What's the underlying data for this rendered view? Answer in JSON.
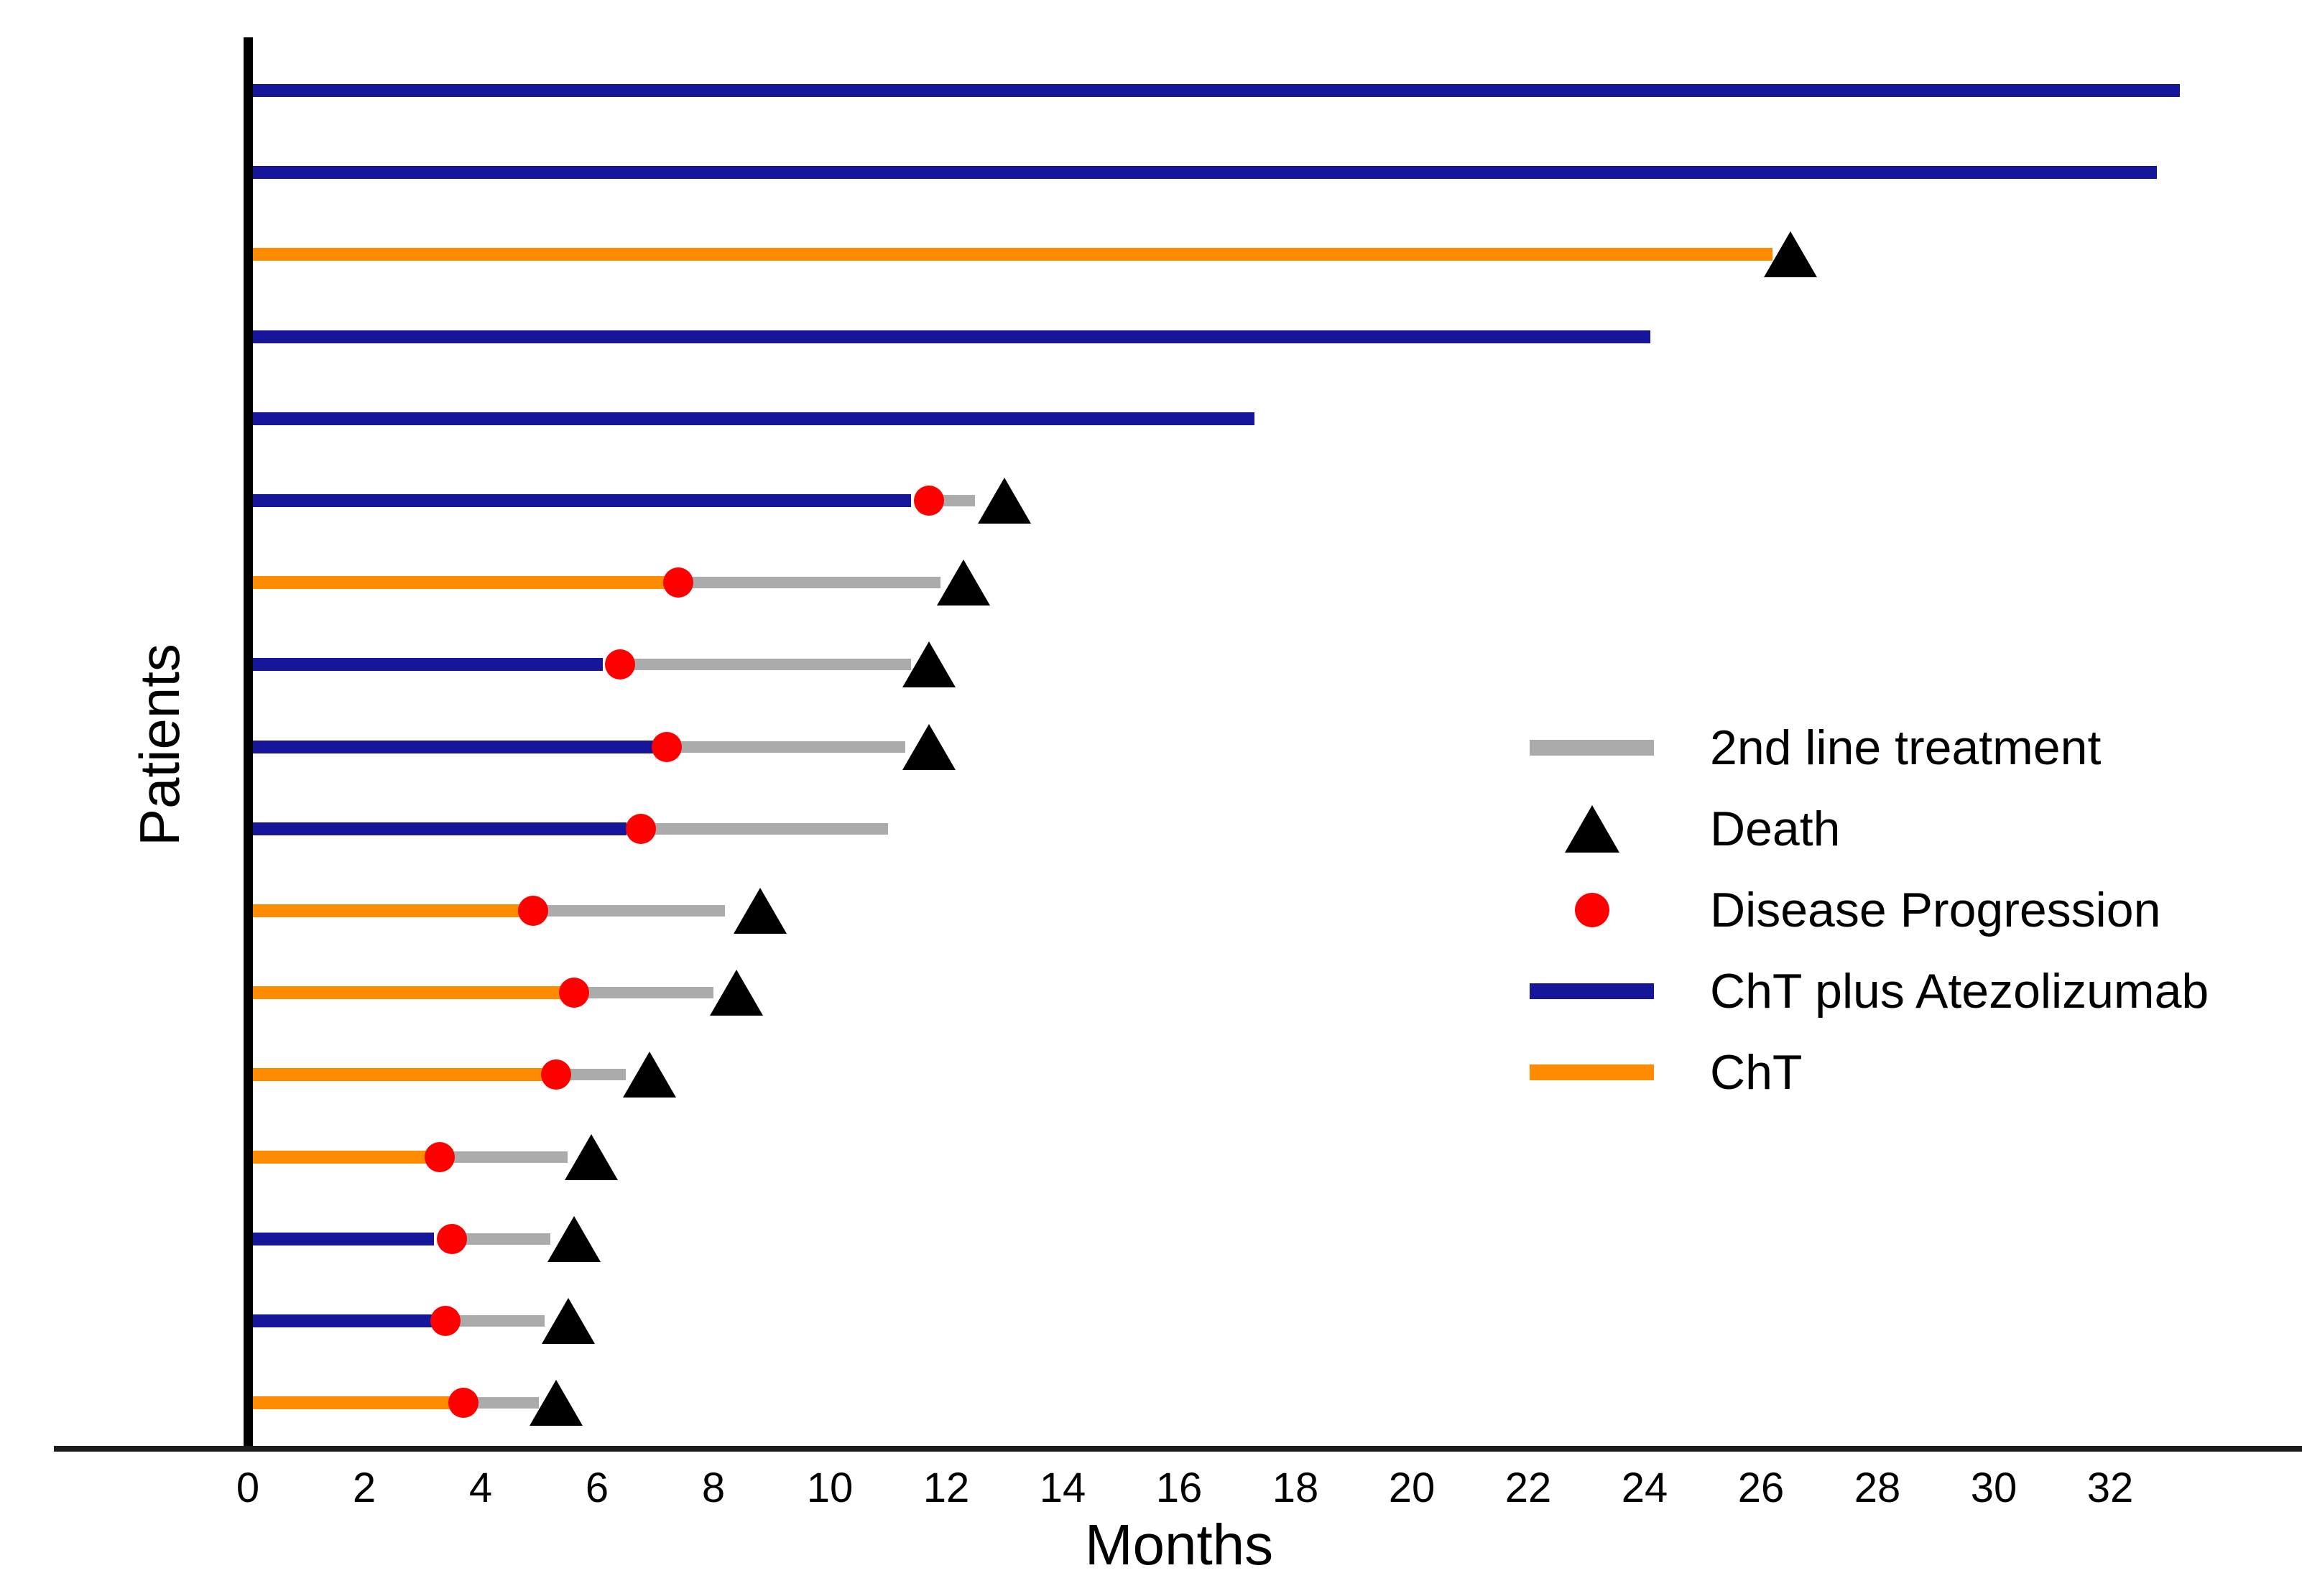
{
  "figure": {
    "title": "",
    "xlabel": "Months",
    "ylabel": "Patients"
  },
  "legend": {
    "items": [
      {
        "label": "2nd line treatment",
        "marker": "line",
        "color": "#ABABAB"
      },
      {
        "label": "Death",
        "marker": "triangle",
        "color": "#000000"
      },
      {
        "label": "Disease Progression",
        "marker": "dot",
        "color": "#FF0000"
      },
      {
        "label": "ChT plus Atezolizumab",
        "marker": "line",
        "color": "#16169B"
      },
      {
        "label": "ChT",
        "marker": "line",
        "color": "#FF8C00"
      }
    ]
  },
  "chart_data": {
    "type": "swimmer",
    "title": "",
    "xlabel": "Months",
    "ylabel": "Patients",
    "x_unit": "months",
    "xlim": [
      0,
      35.3
    ],
    "x_ticks": [
      0,
      2,
      4,
      6,
      8,
      10,
      12,
      14,
      16,
      18,
      20,
      22,
      24,
      26,
      28,
      30,
      32
    ],
    "grid": false,
    "legend_position": "center-right",
    "colors": {
      "ChT plus Atezolizumab": "#16169B",
      "ChT": "#FF8C00",
      "second_line": "#ABABAB",
      "progression": "#FF0000",
      "death": "#000000"
    },
    "patients": [
      {
        "treatment": "ChT plus Atezolizumab",
        "treatment_end": 33.2
      },
      {
        "treatment": "ChT plus Atezolizumab",
        "treatment_end": 32.8
      },
      {
        "treatment": "ChT",
        "treatment_end": 26.2,
        "death": 26.5
      },
      {
        "treatment": "ChT plus Atezolizumab",
        "treatment_end": 24.1
      },
      {
        "treatment": "ChT plus Atezolizumab",
        "treatment_end": 17.3
      },
      {
        "treatment": "ChT plus Atezolizumab",
        "treatment_end": 11.4,
        "progression": 11.7,
        "second_line_end": 12.5,
        "death": 13.0
      },
      {
        "treatment": "ChT",
        "treatment_end": 7.2,
        "progression": 7.4,
        "second_line_end": 11.9,
        "death": 12.3
      },
      {
        "treatment": "ChT plus Atezolizumab",
        "treatment_end": 6.1,
        "progression": 6.4,
        "second_line_end": 11.4,
        "death": 11.7
      },
      {
        "treatment": "ChT plus Atezolizumab",
        "treatment_end": 7.0,
        "progression": 7.2,
        "second_line_end": 11.3,
        "death": 11.7
      },
      {
        "treatment": "ChT plus Atezolizumab",
        "treatment_end": 6.5,
        "progression": 6.75,
        "second_line_end": 11.0
      },
      {
        "treatment": "ChT",
        "treatment_end": 4.7,
        "progression": 4.9,
        "second_line_end": 8.2,
        "death": 8.8
      },
      {
        "treatment": "ChT",
        "treatment_end": 5.4,
        "progression": 5.6,
        "second_line_end": 8.0,
        "death": 8.4
      },
      {
        "treatment": "ChT",
        "treatment_end": 5.1,
        "progression": 5.3,
        "second_line_end": 6.5,
        "death": 6.9
      },
      {
        "treatment": "ChT",
        "treatment_end": 3.1,
        "progression": 3.3,
        "second_line_end": 5.5,
        "death": 5.9
      },
      {
        "treatment": "ChT plus Atezolizumab",
        "treatment_end": 3.2,
        "progression": 3.5,
        "second_line_end": 5.2,
        "death": 5.6
      },
      {
        "treatment": "ChT plus Atezolizumab",
        "treatment_end": 3.2,
        "progression": 3.4,
        "second_line_end": 5.1,
        "death": 5.5
      },
      {
        "treatment": "ChT",
        "treatment_end": 3.5,
        "progression": 3.7,
        "second_line_end": 5.0,
        "death": 5.3
      }
    ]
  }
}
